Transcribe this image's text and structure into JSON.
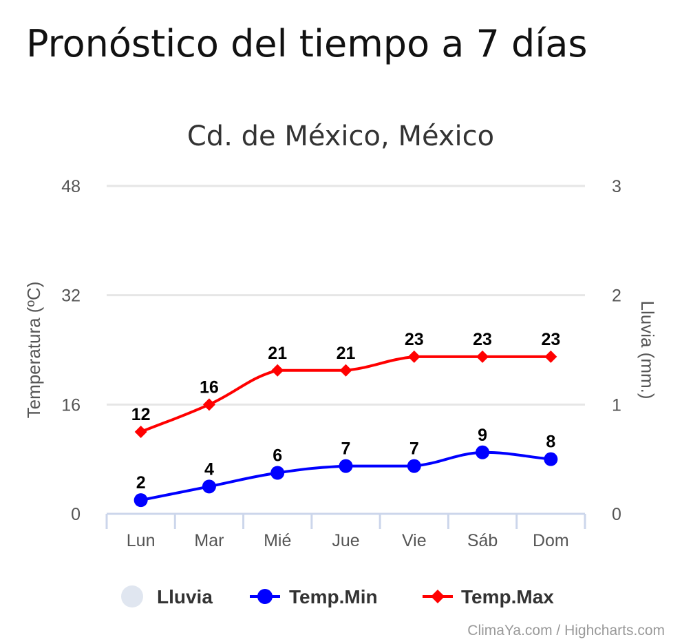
{
  "page": {
    "title": "Pronóstico del tiempo a 7 días"
  },
  "chart_data": {
    "type": "line",
    "title": "Cd. de México, México",
    "categories": [
      "Lun",
      "Mar",
      "Mié",
      "Jue",
      "Vie",
      "Sáb",
      "Dom"
    ],
    "y_left": {
      "label": "Temperatura (ºC)",
      "ylim": [
        0,
        48
      ],
      "ticks": [
        0,
        16,
        32,
        48
      ]
    },
    "y_right": {
      "label": "Lluvia (mm.)",
      "ylim": [
        0,
        3
      ],
      "ticks": [
        0,
        1,
        2,
        3
      ]
    },
    "series": [
      {
        "name": "Lluvia",
        "axis": "right",
        "marker": "circle",
        "color": "#e0e6f0",
        "values": [
          0,
          0,
          0,
          0,
          0,
          0,
          0
        ]
      },
      {
        "name": "Temp.Min",
        "axis": "left",
        "marker": "circle",
        "color": "#0000ff",
        "values": [
          2,
          4,
          6,
          7,
          7,
          9,
          8
        ]
      },
      {
        "name": "Temp.Max",
        "axis": "left",
        "marker": "diamond",
        "color": "#ff0000",
        "values": [
          12,
          16,
          21,
          21,
          23,
          23,
          23
        ]
      }
    ],
    "grid": true,
    "legend": "bottom-center",
    "credits": "ClimaYa.com / Highcharts.com"
  }
}
